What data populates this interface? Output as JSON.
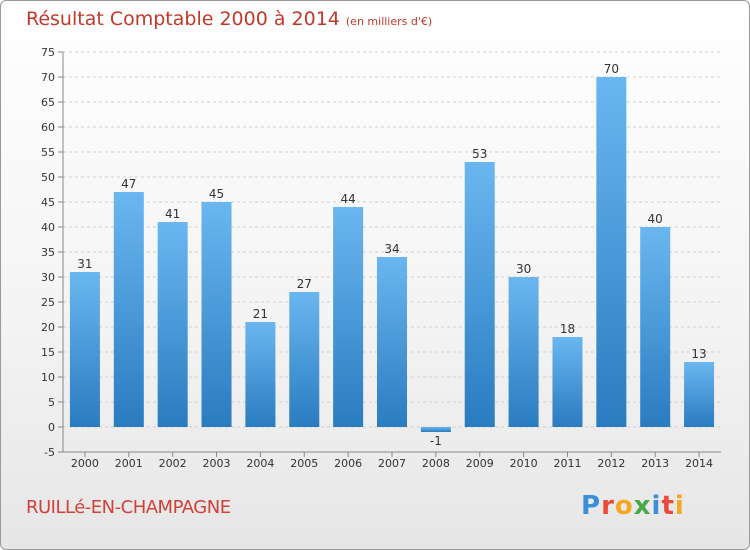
{
  "header": {
    "title": "Résultat Comptable 2000 à 2014",
    "unit": "(en milliers d'€)"
  },
  "footer": {
    "commune": "RUILLé-EN-CHAMPAGNE",
    "logo_letters": [
      "P",
      "r",
      "o",
      "x",
      "i",
      "t",
      "i"
    ],
    "logo_colors": [
      "#3a8fd8",
      "#e84b3a",
      "#f5a623",
      "#4aa84a",
      "#3a8fd8",
      "#e84b3a",
      "#f5a623"
    ]
  },
  "colors": {
    "bar_light": "#6ab6f0",
    "bar_dark": "#2a7cc0",
    "grid": "#cfcfcf",
    "axis_text": "#333333"
  },
  "chart_data": {
    "type": "bar",
    "title": "Résultat Comptable 2000 à 2014",
    "subtitle": "(en milliers d'€)",
    "categories": [
      "2000",
      "2001",
      "2002",
      "2003",
      "2004",
      "2005",
      "2006",
      "2007",
      "2008",
      "2009",
      "2010",
      "2011",
      "2012",
      "2013",
      "2014"
    ],
    "values": [
      31,
      47,
      41,
      45,
      21,
      27,
      44,
      34,
      -1,
      53,
      30,
      18,
      70,
      40,
      13
    ],
    "ylim": [
      -5,
      75
    ],
    "yticks": [
      -5,
      0,
      5,
      10,
      15,
      20,
      25,
      30,
      35,
      40,
      45,
      50,
      55,
      60,
      65,
      70,
      75
    ],
    "grid": "horizontal dashed",
    "data_labels": true
  }
}
